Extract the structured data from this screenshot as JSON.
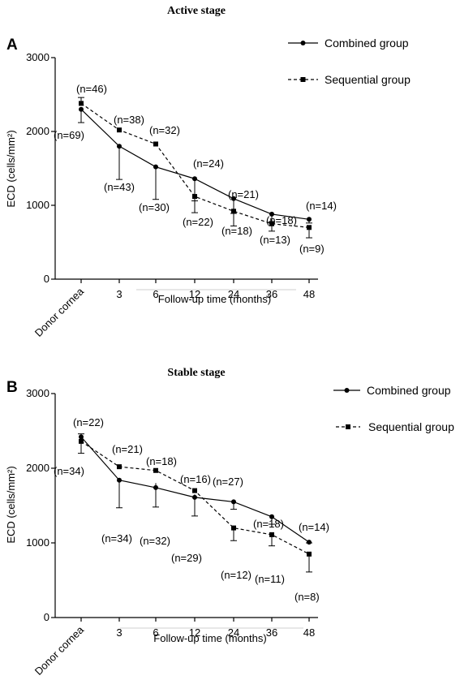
{
  "chart_data": [
    {
      "type": "line",
      "panel_label": "A",
      "title": "Active stage",
      "xlabel": "Follow-up time (months)",
      "ylabel": "ECD (cells/mm²)",
      "ylim": [
        0,
        3000
      ],
      "yticks": [
        "0",
        "1000",
        "2000",
        "3000"
      ],
      "categories": [
        "Donor cornea",
        "3",
        "6",
        "12",
        "24",
        "36",
        "48"
      ],
      "legend_position": "top-right",
      "series": [
        {
          "name": "Combined group",
          "line_style": "solid",
          "marker": "circle",
          "values": [
            2300,
            1800,
            1520,
            1360,
            1090,
            880,
            810
          ],
          "error_low": [
            2120,
            1350,
            1080,
            1060,
            890,
            780,
            760
          ],
          "error_high": [
            2300,
            1800,
            1520,
            1360,
            1090,
            880,
            810
          ],
          "n_labels": [
            "(n=69)",
            "(n=43)",
            "(n=30)",
            "(n=24)",
            "(n=21)",
            "(n=18)",
            "(n=14)"
          ]
        },
        {
          "name": "Sequential group",
          "line_style": "dashed",
          "marker": "square",
          "values": [
            2380,
            2020,
            1830,
            1120,
            920,
            750,
            700
          ],
          "error_low": [
            2380,
            2020,
            1830,
            900,
            720,
            650,
            560
          ],
          "error_high": [
            2460,
            2020,
            1830,
            1120,
            920,
            750,
            700
          ],
          "n_labels": [
            "(n=46)",
            "(n=38)",
            "(n=32)",
            "(n=22)",
            "(n=18)",
            "(n=13)",
            "(n=9)"
          ]
        }
      ]
    },
    {
      "type": "line",
      "panel_label": "B",
      "title": "Stable stage",
      "xlabel": "Follow-up time (months)",
      "ylabel": "ECD (cells/mm²)",
      "ylim": [
        0,
        3000
      ],
      "yticks": [
        "0",
        "1000",
        "2000",
        "3000"
      ],
      "categories": [
        "Donor cornea",
        "3",
        "6",
        "12",
        "24",
        "36",
        "48"
      ],
      "legend_position": "top-right",
      "series": [
        {
          "name": "Combined group",
          "line_style": "solid",
          "marker": "circle",
          "values": [
            2420,
            1840,
            1740,
            1610,
            1550,
            1350,
            1010
          ],
          "error_low": [
            2420,
            1470,
            1480,
            1360,
            1450,
            1250,
            1000
          ],
          "error_high": [
            2460,
            1840,
            1800,
            1650,
            1550,
            1350,
            1010
          ],
          "n_labels": [
            "(n=34)",
            "(n=34)",
            "(n=32)",
            "(n=29)",
            "(n=27)",
            "(n=18)",
            "(n=14)"
          ]
        },
        {
          "name": "Sequential group",
          "line_style": "dashed",
          "marker": "square",
          "values": [
            2360,
            2020,
            1970,
            1700,
            1200,
            1110,
            850
          ],
          "error_low": [
            2200,
            2020,
            1970,
            1700,
            1030,
            960,
            610
          ],
          "error_high": [
            2360,
            2020,
            1970,
            1700,
            1200,
            1110,
            850
          ],
          "n_labels": [
            "(n=22)",
            "(n=21)",
            "(n=18)",
            "(n=16)",
            "(n=12)",
            "(n=11)",
            "(n=8)"
          ]
        }
      ]
    }
  ]
}
